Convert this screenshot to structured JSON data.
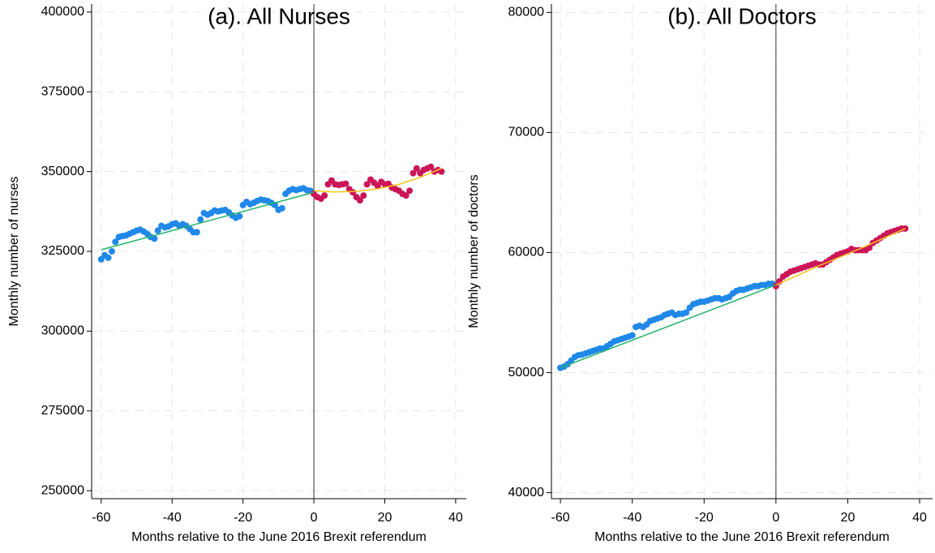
{
  "chart_data": [
    {
      "type": "scatter",
      "title": "(a). All Nurses",
      "xlabel": "Months relative to the June 2016 Brexit referendum",
      "ylabel": "Monthly number of nurses",
      "xlim": [
        -62.7,
        43
      ],
      "ylim": [
        247500,
        402500
      ],
      "xticks": [
        -60,
        -40,
        -20,
        0,
        20,
        40
      ],
      "yticks": [
        250000,
        275000,
        300000,
        325000,
        350000,
        375000,
        400000
      ],
      "grid": true,
      "vline": 0,
      "series": [
        {
          "style": "points",
          "color": "#1f88e8",
          "x": [
            -60,
            -59,
            -58,
            -57,
            -56,
            -55,
            -54,
            -53,
            -52,
            -51,
            -50,
            -49,
            -48,
            -47,
            -46,
            -45,
            -44,
            -43,
            -42,
            -41,
            -40,
            -39,
            -38,
            -37,
            -36,
            -35,
            -34,
            -33,
            -32,
            -31,
            -30,
            -29,
            -28,
            -27,
            -26,
            -25,
            -24,
            -23,
            -22,
            -21,
            -20,
            -19,
            -18,
            -17,
            -16,
            -15,
            -14,
            -13,
            -12,
            -11,
            -10,
            -9,
            -8,
            -7,
            -6,
            -5,
            -4,
            -3,
            -2,
            -1
          ],
          "values": [
            322500,
            323800,
            323000,
            325000,
            328000,
            329500,
            329800,
            330000,
            330500,
            331000,
            331500,
            331800,
            331200,
            330500,
            329500,
            329000,
            331500,
            333000,
            332500,
            332800,
            333500,
            333800,
            333000,
            333500,
            333000,
            332000,
            331000,
            331000,
            335000,
            337000,
            336500,
            337000,
            337800,
            337500,
            337800,
            338000,
            337200,
            336200,
            335500,
            336000,
            339500,
            340500,
            339800,
            340200,
            340800,
            341200,
            341000,
            340800,
            340200,
            339500,
            338000,
            338500,
            343000,
            344000,
            344500,
            344200,
            344500,
            344800,
            344200,
            344000
          ]
        },
        {
          "style": "points",
          "color": "#cc1559",
          "x": [
            0,
            1,
            2,
            3,
            4,
            5,
            6,
            7,
            8,
            9,
            10,
            11,
            12,
            13,
            14,
            15,
            16,
            17,
            18,
            19,
            20,
            21,
            22,
            23,
            24,
            25,
            26,
            27,
            28,
            29,
            30,
            31,
            32,
            33,
            34,
            35,
            36
          ],
          "values": [
            343000,
            342000,
            341500,
            342500,
            346000,
            347200,
            346000,
            345800,
            346000,
            346200,
            344500,
            343500,
            342000,
            341000,
            342500,
            346000,
            347500,
            346500,
            345500,
            346800,
            346000,
            346200,
            345000,
            344500,
            344000,
            343000,
            342500,
            344000,
            349500,
            351000,
            349500,
            350500,
            351000,
            351500,
            350000,
            350500,
            350000
          ]
        },
        {
          "style": "line",
          "color": "#23b26d",
          "x": [
            -60,
            0
          ],
          "values": [
            325500,
            343500
          ]
        },
        {
          "style": "line",
          "color": "#f5c518",
          "x": [
            0,
            6,
            12,
            18,
            24,
            30,
            36
          ],
          "values": [
            344000,
            343600,
            343800,
            344600,
            346000,
            348200,
            351000
          ]
        }
      ]
    },
    {
      "type": "scatter",
      "title": "(b). All Doctors",
      "xlabel": "Months relative to the June 2016 Brexit referendum",
      "ylabel": "Monthly number of doctors",
      "xlim": [
        -62.5,
        43.6
      ],
      "ylim": [
        39500,
        80700
      ],
      "xticks": [
        -60,
        -40,
        -20,
        0,
        20,
        40
      ],
      "yticks": [
        40000,
        50000,
        60000,
        70000,
        80000
      ],
      "grid": true,
      "vline": 0,
      "series": [
        {
          "style": "points",
          "color": "#1f88e8",
          "x": [
            -60,
            -59,
            -58,
            -57,
            -56,
            -55,
            -54,
            -53,
            -52,
            -51,
            -50,
            -49,
            -48,
            -47,
            -46,
            -45,
            -44,
            -43,
            -42,
            -41,
            -40,
            -39,
            -38,
            -37,
            -36,
            -35,
            -34,
            -33,
            -32,
            -31,
            -30,
            -29,
            -28,
            -27,
            -26,
            -25,
            -24,
            -23,
            -22,
            -21,
            -20,
            -19,
            -18,
            -17,
            -16,
            -15,
            -14,
            -13,
            -12,
            -11,
            -10,
            -9,
            -8,
            -7,
            -6,
            -5,
            -4,
            -3,
            -2,
            -1
          ],
          "values": [
            50400,
            50500,
            50700,
            51000,
            51300,
            51450,
            51500,
            51600,
            51700,
            51800,
            51900,
            52000,
            52000,
            52200,
            52400,
            52600,
            52700,
            52800,
            52900,
            53000,
            53100,
            53800,
            53900,
            53800,
            54000,
            54300,
            54400,
            54500,
            54600,
            54800,
            54900,
            55000,
            54800,
            54900,
            54900,
            55000,
            55400,
            55700,
            55800,
            55900,
            55900,
            56000,
            56100,
            56200,
            56200,
            56100,
            56200,
            56300,
            56600,
            56800,
            56900,
            56900,
            57000,
            57100,
            57200,
            57200,
            57300,
            57300,
            57400,
            57400
          ]
        },
        {
          "style": "points",
          "color": "#cc1559",
          "x": [
            0,
            1,
            2,
            3,
            4,
            5,
            6,
            7,
            8,
            9,
            10,
            11,
            12,
            13,
            14,
            15,
            16,
            17,
            18,
            19,
            20,
            21,
            22,
            23,
            24,
            25,
            26,
            27,
            28,
            29,
            30,
            31,
            32,
            33,
            34,
            35,
            36
          ],
          "values": [
            57200,
            57600,
            58000,
            58200,
            58400,
            58500,
            58600,
            58700,
            58800,
            58900,
            59000,
            59100,
            59000,
            59000,
            59200,
            59400,
            59600,
            59800,
            59900,
            60000,
            60100,
            60300,
            60200,
            60200,
            60200,
            60200,
            60400,
            60800,
            61000,
            61200,
            61400,
            61600,
            61700,
            61800,
            61900,
            62000,
            62000
          ]
        },
        {
          "style": "line",
          "color": "#23b26d",
          "x": [
            -60,
            0
          ],
          "values": [
            50400,
            57300
          ]
        },
        {
          "style": "line",
          "color": "#f5c518",
          "x": [
            0,
            12,
            24,
            36
          ],
          "values": [
            57300,
            58900,
            60400,
            62000
          ]
        }
      ]
    }
  ]
}
